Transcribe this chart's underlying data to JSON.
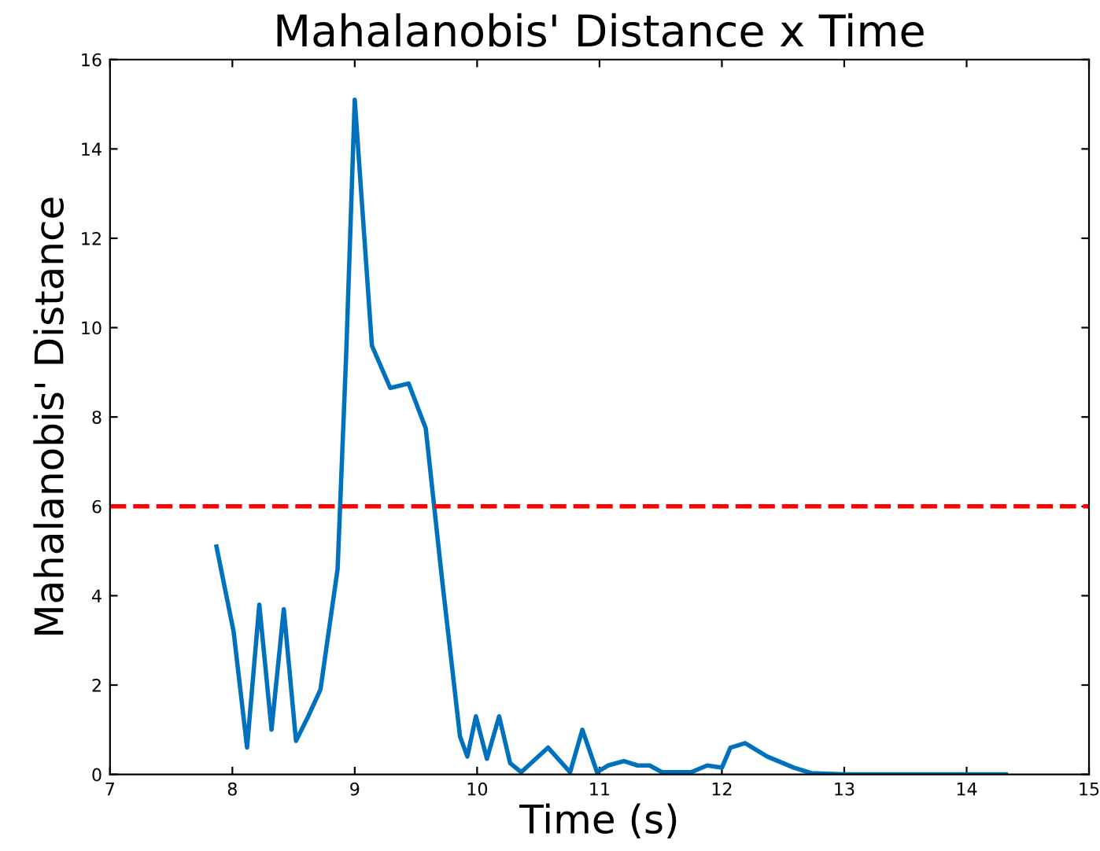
{
  "chart_data": {
    "type": "line",
    "title": "Mahalanobis' Distance x Time",
    "xlabel": "Time (s)",
    "ylabel": "Mahalanobis' Distance",
    "series": [
      {
        "color": "#0072bd",
        "x": [
          7.87,
          8.01,
          8.12,
          8.22,
          8.32,
          8.42,
          8.52,
          8.62,
          8.72,
          8.86,
          8.93,
          9.0,
          9.14,
          9.29,
          9.44,
          9.58,
          9.71,
          9.86,
          9.92,
          9.99,
          10.08,
          10.18,
          10.27,
          10.36,
          10.58,
          10.76,
          10.86,
          10.98,
          11.07,
          11.2,
          11.31,
          11.41,
          11.51,
          11.64,
          11.75,
          11.88,
          12.0,
          12.07,
          12.19,
          12.37,
          12.59,
          12.73,
          13.0,
          14.32
        ],
        "values": [
          5.1,
          3.2,
          0.6,
          3.8,
          1.0,
          3.7,
          0.75,
          1.3,
          1.9,
          4.6,
          9.4,
          15.1,
          9.6,
          8.65,
          8.75,
          7.75,
          4.45,
          0.85,
          0.4,
          1.3,
          0.35,
          1.3,
          0.25,
          0.05,
          0.6,
          0.05,
          1.0,
          0.05,
          0.2,
          0.3,
          0.2,
          0.2,
          0.05,
          0.05,
          0.05,
          0.2,
          0.15,
          0.6,
          0.7,
          0.4,
          0.15,
          0.03,
          0,
          0
        ]
      }
    ],
    "xlim": [
      7,
      15
    ],
    "xticks": [
      7,
      8,
      9,
      10,
      11,
      12,
      13,
      14,
      15
    ],
    "ylim": [
      0,
      16
    ],
    "yticks": [
      0,
      2,
      4,
      6,
      8,
      10,
      12,
      14,
      16
    ],
    "ref_lines": [
      {
        "axis": "y",
        "value": 6,
        "color": "#ff0000",
        "line_style": "dashed"
      }
    ],
    "grid": false,
    "legend": false,
    "marker": "none",
    "line_style": "solid"
  }
}
